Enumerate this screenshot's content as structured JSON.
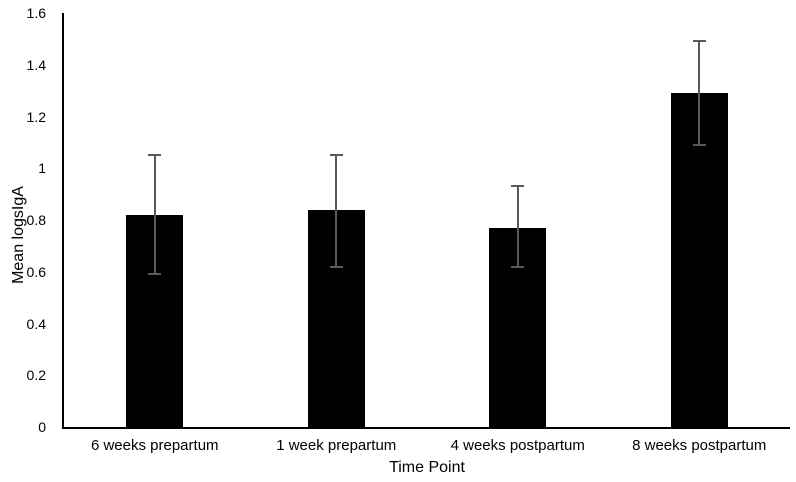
{
  "chart_data": {
    "type": "bar",
    "title": "",
    "xlabel": "Time Point",
    "ylabel": "Mean logsIgA",
    "categories": [
      "6 weeks prepartum",
      "1 week prepartum",
      "4 weeks postpartum",
      "8 weeks postpartum"
    ],
    "values": [
      0.82,
      0.84,
      0.77,
      1.29
    ],
    "error_low": [
      0.59,
      0.62,
      0.62,
      1.09
    ],
    "error_high": [
      1.05,
      1.05,
      0.93,
      1.49
    ],
    "ylim": [
      0,
      1.6
    ],
    "ytick_step": 0.2,
    "ytick_labels": [
      "0",
      "0.2",
      "0.4",
      "0.6",
      "0.8",
      "1",
      "1.2",
      "1.4",
      "1.6"
    ],
    "grid": false,
    "legend": false,
    "bar_color": "#000000",
    "error_bar_color": "#595959",
    "axis_color": "#000000",
    "text_color": "#000000",
    "background": "#ffffff"
  }
}
